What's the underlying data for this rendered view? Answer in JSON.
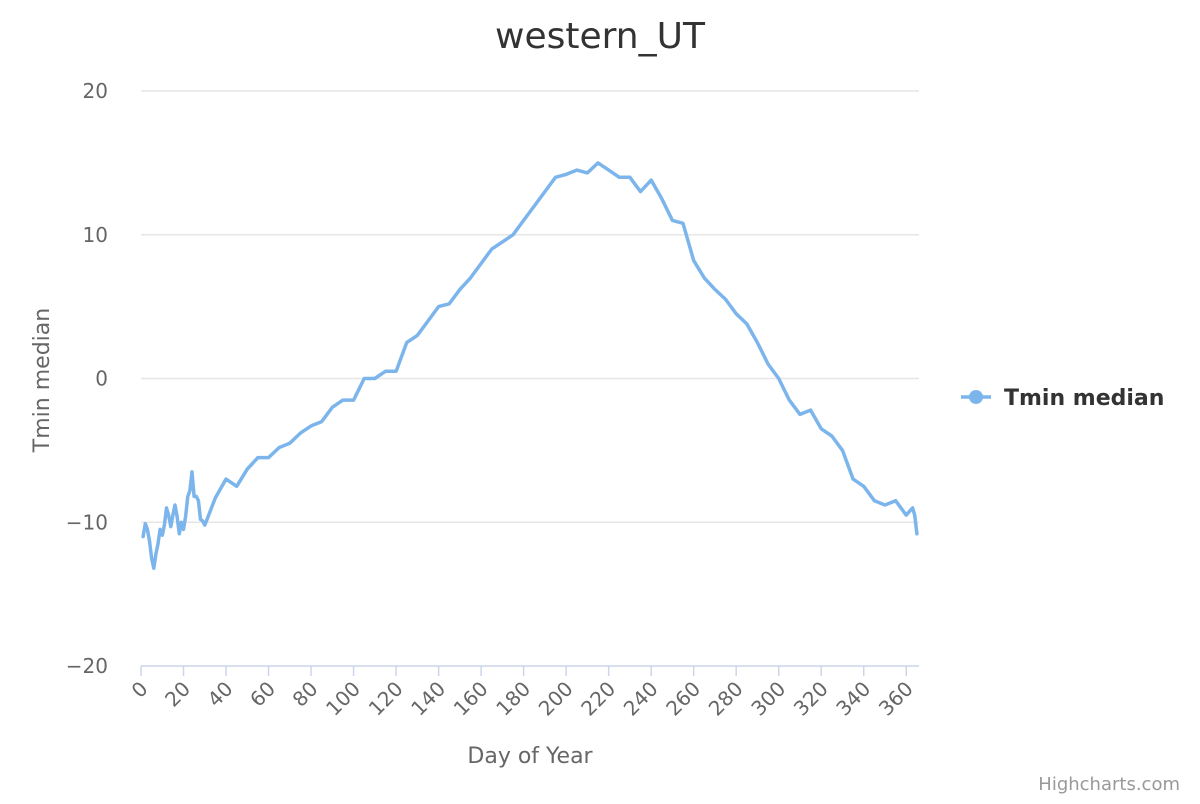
{
  "chart_data": {
    "type": "line",
    "title": "western_UT",
    "xlabel": "Day of Year",
    "ylabel": "Tmin median",
    "xlim": [
      0,
      366
    ],
    "ylim": [
      -20,
      20
    ],
    "x_ticks": [
      0,
      20,
      40,
      60,
      80,
      100,
      120,
      140,
      160,
      180,
      200,
      220,
      240,
      260,
      280,
      300,
      320,
      340,
      360
    ],
    "y_ticks": [
      -20,
      -10,
      0,
      10,
      20
    ],
    "y_tick_labels": [
      "−20",
      "−10",
      "0",
      "10",
      "20"
    ],
    "grid": true,
    "legend_position": "right",
    "series": [
      {
        "name": "Tmin median",
        "color": "#7cb5ec",
        "x": [
          1,
          2,
          3,
          4,
          5,
          6,
          7,
          8,
          9,
          10,
          11,
          12,
          13,
          14,
          15,
          16,
          17,
          18,
          19,
          20,
          21,
          22,
          23,
          24,
          25,
          26,
          27,
          28,
          29,
          30,
          35,
          40,
          45,
          50,
          55,
          60,
          65,
          70,
          75,
          80,
          85,
          90,
          95,
          100,
          105,
          110,
          115,
          120,
          125,
          130,
          135,
          140,
          145,
          150,
          155,
          160,
          165,
          170,
          175,
          180,
          185,
          190,
          195,
          200,
          205,
          210,
          215,
          220,
          225,
          230,
          235,
          240,
          245,
          250,
          255,
          260,
          265,
          270,
          275,
          280,
          285,
          290,
          295,
          300,
          305,
          310,
          315,
          320,
          325,
          330,
          335,
          340,
          345,
          350,
          355,
          360,
          363,
          364,
          365
        ],
        "values": [
          -11,
          -10.1,
          -10.5,
          -11.3,
          -12.5,
          -13.2,
          -12.2,
          -11.5,
          -10.5,
          -10.9,
          -10.2,
          -9,
          -9.5,
          -10.3,
          -9.5,
          -8.8,
          -9.6,
          -10.8,
          -10,
          -10.5,
          -9.6,
          -8.2,
          -7.8,
          -6.5,
          -8.2,
          -8.2,
          -8.5,
          -9.8,
          -9.9,
          -10.2,
          -8.3,
          -7,
          -7.5,
          -6.3,
          -5.5,
          -5.5,
          -4.8,
          -4.5,
          -3.8,
          -3.3,
          -3,
          -2,
          -1.5,
          -1.5,
          0,
          0,
          0.5,
          0.5,
          2.5,
          3,
          4,
          5,
          5.2,
          6.2,
          7,
          8,
          9,
          9.5,
          10,
          11,
          12,
          13,
          14,
          14.2,
          14.5,
          14.3,
          15,
          14.5,
          14,
          14,
          13,
          13.8,
          12.5,
          11,
          10.8,
          8.2,
          7,
          6.2,
          5.5,
          4.5,
          3.8,
          2.5,
          1,
          0,
          -1.5,
          -2.5,
          -2.2,
          -3.5,
          -4,
          -5,
          -7,
          -7.5,
          -8.5,
          -8.8,
          -8.5,
          -9.5,
          -9,
          -9.5,
          -10.8
        ]
      }
    ],
    "credits": "Highcharts.com"
  }
}
